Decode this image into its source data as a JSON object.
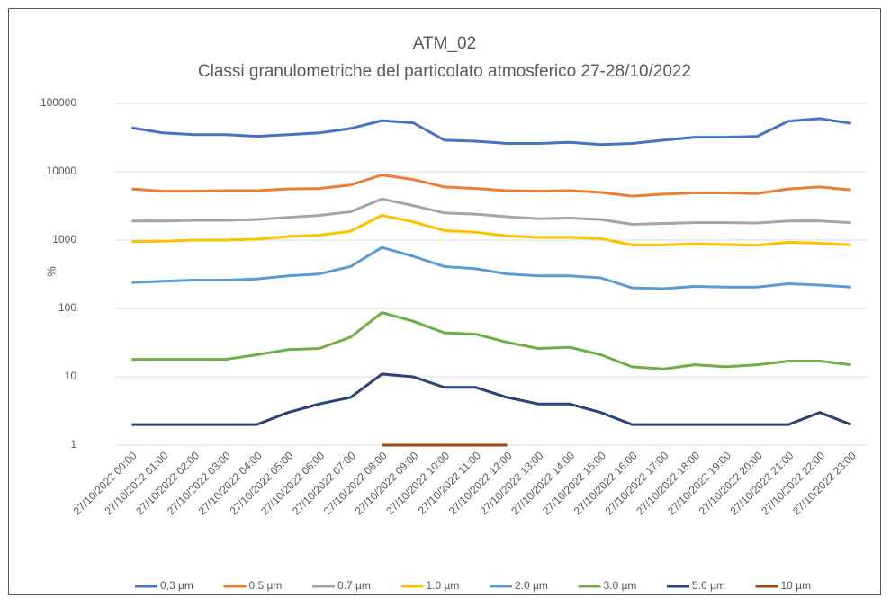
{
  "chart_data": {
    "type": "line",
    "title": "ATM_02",
    "subtitle": "Classi granulometriche del particolato atmosferico 27-28/10/2022",
    "y_label": "%",
    "log_scale": true,
    "grid": true,
    "legend": "bottom",
    "ylim": [
      1,
      100000
    ],
    "yticks": [
      1,
      10,
      100,
      1000,
      10000,
      100000
    ],
    "categories": [
      "27/10/2022 00:00",
      "27/10/2022 01:00",
      "27/10/2022 02:00",
      "27/10/2022 03:00",
      "27/10/2022 04:00",
      "27/10/2022 05:00",
      "27/10/2022 06:00",
      "27/10/2022 07:00",
      "27/10/2022 08:00",
      "27/10/2022 09:00",
      "27/10/2022 10:00",
      "27/10/2022 11:00",
      "27/10/2022 12:00",
      "27/10/2022 13:00",
      "27/10/2022 14:00",
      "27/10/2022 15:00",
      "27/10/2022 16:00",
      "27/10/2022 17:00",
      "27/10/2022 18:00",
      "27/10/2022 19:00",
      "27/10/2022 20:00",
      "27/10/2022 21:00",
      "27/10/2022 22:00",
      "27/10/2022 23:00"
    ],
    "series": [
      {
        "name": "0,3 µm",
        "color": "#4472c4",
        "values": [
          44000,
          37000,
          35000,
          35000,
          33000,
          35000,
          37000,
          43000,
          56000,
          52000,
          29000,
          28000,
          26000,
          26000,
          27000,
          25000,
          26000,
          29000,
          32000,
          32000,
          33000,
          55000,
          60000,
          51000
        ]
      },
      {
        "name": "0.5 µm",
        "color": "#ed7d31",
        "values": [
          5600,
          5200,
          5200,
          5300,
          5300,
          5600,
          5700,
          6400,
          9000,
          7700,
          6000,
          5700,
          5300,
          5200,
          5300,
          5000,
          4400,
          4700,
          4900,
          4900,
          4800,
          5600,
          6000,
          5400
        ]
      },
      {
        "name": "0.7 µm",
        "color": "#a5a5a5",
        "values": [
          1900,
          1900,
          1950,
          1950,
          2000,
          2150,
          2300,
          2600,
          4000,
          3200,
          2500,
          2400,
          2200,
          2050,
          2100,
          2000,
          1700,
          1750,
          1800,
          1800,
          1780,
          1900,
          1900,
          1800
        ]
      },
      {
        "name": "1.0 µm",
        "color": "#ffc000",
        "values": [
          950,
          960,
          1000,
          1000,
          1030,
          1130,
          1180,
          1350,
          2300,
          1850,
          1380,
          1300,
          1150,
          1100,
          1100,
          1050,
          850,
          850,
          880,
          860,
          840,
          930,
          900,
          850
        ]
      },
      {
        "name": "2.0 µm",
        "color": "#5b9bd5",
        "values": [
          240,
          250,
          260,
          260,
          270,
          300,
          320,
          410,
          780,
          580,
          410,
          380,
          320,
          300,
          300,
          280,
          200,
          195,
          210,
          205,
          205,
          230,
          220,
          205
        ]
      },
      {
        "name": "3.0 µm",
        "color": "#70ad47",
        "values": [
          18,
          18,
          18,
          18,
          21,
          25,
          26,
          38,
          87,
          65,
          44,
          42,
          32,
          26,
          27,
          21,
          14,
          13,
          15,
          14,
          15,
          17,
          17,
          15
        ]
      },
      {
        "name": "5.0 µm",
        "color": "#264478",
        "values": [
          2,
          2,
          2,
          2,
          2,
          3,
          4,
          5,
          11,
          10,
          7,
          7,
          5,
          4,
          4,
          3,
          2,
          2,
          2,
          2,
          2,
          2,
          3,
          2
        ]
      },
      {
        "name": "10 µm",
        "color": "#9e480e",
        "values": [
          null,
          null,
          null,
          null,
          null,
          null,
          null,
          null,
          1,
          1,
          1,
          1,
          1,
          null,
          null,
          null,
          null,
          null,
          null,
          null,
          null,
          null,
          null,
          null
        ]
      }
    ]
  }
}
